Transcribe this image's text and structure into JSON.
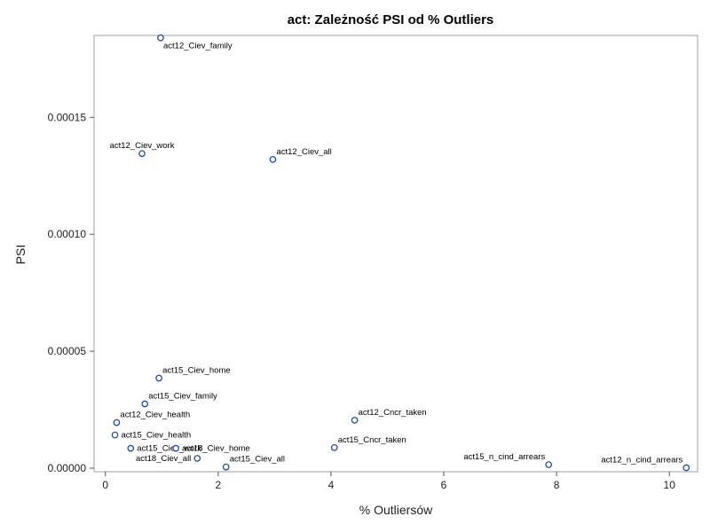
{
  "chart_data": {
    "type": "scatter",
    "title": "act: Zależność PSI od % Outliers",
    "xlabel": "% Outliersów",
    "ylabel": "PSI",
    "xlim": [
      -0.2,
      10.5
    ],
    "ylim": [
      -1.5e-06,
      0.000185
    ],
    "xticks": [
      0,
      2,
      4,
      6,
      8,
      10
    ],
    "xtick_labels": [
      "0",
      "2",
      "4",
      "6",
      "8",
      "10"
    ],
    "yticks": [
      0,
      5e-05,
      0.0001,
      0.00015
    ],
    "ytick_labels": [
      "0.00000",
      "0.00005",
      "0.00010",
      "0.00015"
    ],
    "grid": false,
    "legend": "none",
    "marker_color": "#1f4e9c",
    "points": [
      {
        "label": "act12_Ciev_family",
        "x": 0.98,
        "y": 0.000184,
        "lpos": "below-right"
      },
      {
        "label": "act12_Ciev_work",
        "x": 0.65,
        "y": 0.0001345,
        "lpos": "above-center"
      },
      {
        "label": "act12_Ciev_all",
        "x": 2.97,
        "y": 0.000132,
        "lpos": "above-right"
      },
      {
        "label": "act15_Ciev_home",
        "x": 0.95,
        "y": 3.85e-05,
        "lpos": "above-right"
      },
      {
        "label": "act15_Ciev_family",
        "x": 0.7,
        "y": 2.75e-05,
        "lpos": "above-right"
      },
      {
        "label": "act12_Ciev_health",
        "x": 0.2,
        "y": 1.95e-05,
        "lpos": "above-right"
      },
      {
        "label": "act15_Ciev_health",
        "x": 0.17,
        "y": 1.42e-05,
        "lpos": "right"
      },
      {
        "label": "act15_Ciev_work",
        "x": 0.45,
        "y": 8.5e-06,
        "lpos": "right"
      },
      {
        "label": "act18_Ciev_home",
        "x": 1.25,
        "y": 8.5e-06,
        "lpos": "right"
      },
      {
        "label": "act18_Ciev_all",
        "x": 1.63,
        "y": 4.2e-06,
        "lpos": "left"
      },
      {
        "label": "act15_Ciev_all",
        "x": 2.14,
        "y": 5e-07,
        "lpos": "above-right"
      },
      {
        "label": "act12_Cncr_taken",
        "x": 4.42,
        "y": 2.05e-05,
        "lpos": "above-right"
      },
      {
        "label": "act15_Cncr_taken",
        "x": 4.06,
        "y": 8.8e-06,
        "lpos": "above-right"
      },
      {
        "label": "act15_n_cind_arrears",
        "x": 7.86,
        "y": 1.5e-06,
        "lpos": "above-left"
      },
      {
        "label": "act12_n_cind_arrears",
        "x": 10.3,
        "y": 2e-07,
        "lpos": "above-left"
      }
    ]
  }
}
